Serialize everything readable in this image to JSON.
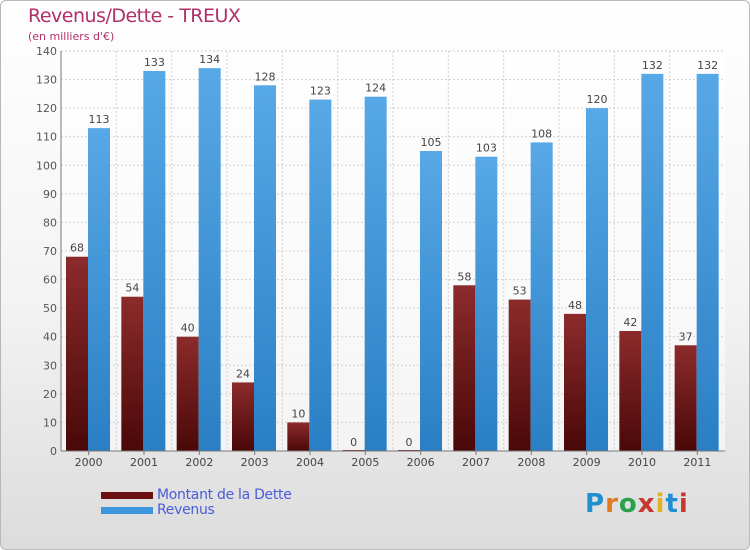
{
  "title": "Revenus/Dette - TREUX",
  "subtitle": "(en milliers d'€)",
  "logo": {
    "text": "Proxiti",
    "letter_colors": [
      "#1f8fd1",
      "#e07a1f",
      "#2aa24a",
      "#c7362f",
      "#e0b21f",
      "#1f8fd1",
      "#c7362f"
    ]
  },
  "chart_data": {
    "type": "bar",
    "categories": [
      "2000",
      "2001",
      "2002",
      "2003",
      "2004",
      "2005",
      "2006",
      "2007",
      "2008",
      "2009",
      "2010",
      "2011"
    ],
    "series": [
      {
        "name": "Montant de la Dette",
        "values": [
          68,
          54,
          40,
          24,
          10,
          0,
          0,
          58,
          53,
          48,
          42,
          37
        ],
        "color": "#7a1c1c"
      },
      {
        "name": "Revenus",
        "values": [
          113,
          133,
          134,
          128,
          123,
          124,
          105,
          103,
          108,
          120,
          132,
          132
        ],
        "color": "#3d96dc"
      }
    ],
    "yticks": [
      0,
      10,
      20,
      30,
      40,
      50,
      60,
      70,
      80,
      90,
      100,
      110,
      120,
      130,
      140
    ],
    "ylim": [
      0,
      140
    ],
    "grid": true,
    "legend_position": "bottom-left"
  }
}
